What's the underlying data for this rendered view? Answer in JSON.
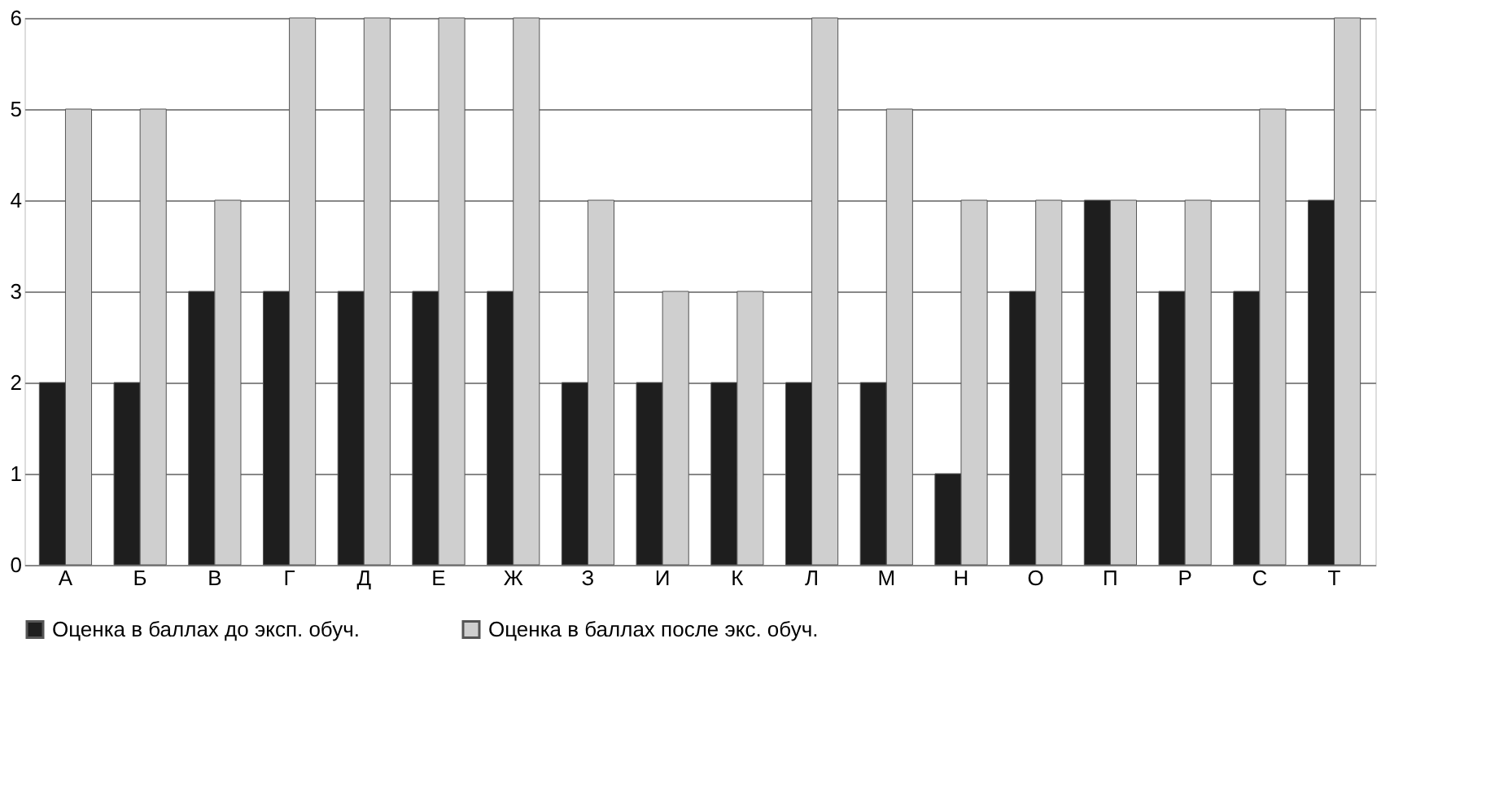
{
  "chart_data": {
    "type": "bar",
    "categories": [
      "А",
      "Б",
      "В",
      "Г",
      "Д",
      "Е",
      "Ж",
      "З",
      "И",
      "К",
      "Л",
      "М",
      "Н",
      "О",
      "П",
      "Р",
      "С",
      "Т"
    ],
    "series": [
      {
        "name": "Оценка в баллах до эксп. обуч.",
        "color": "#1e1e1e",
        "values": [
          2,
          2,
          3,
          3,
          3,
          3,
          3,
          2,
          2,
          2,
          2,
          2,
          1,
          3,
          4,
          3,
          3,
          4
        ]
      },
      {
        "name": "Оценка в баллах после экс. обуч.",
        "color": "#cfcfcf",
        "values": [
          5,
          5,
          4,
          6,
          6,
          6,
          6,
          4,
          3,
          3,
          6,
          5,
          4,
          4,
          4,
          4,
          5,
          6
        ]
      }
    ],
    "ylim": [
      0,
      6
    ],
    "yticks": [
      0,
      1,
      2,
      3,
      4,
      5,
      6
    ],
    "grid": "y",
    "legend": "bottom"
  }
}
